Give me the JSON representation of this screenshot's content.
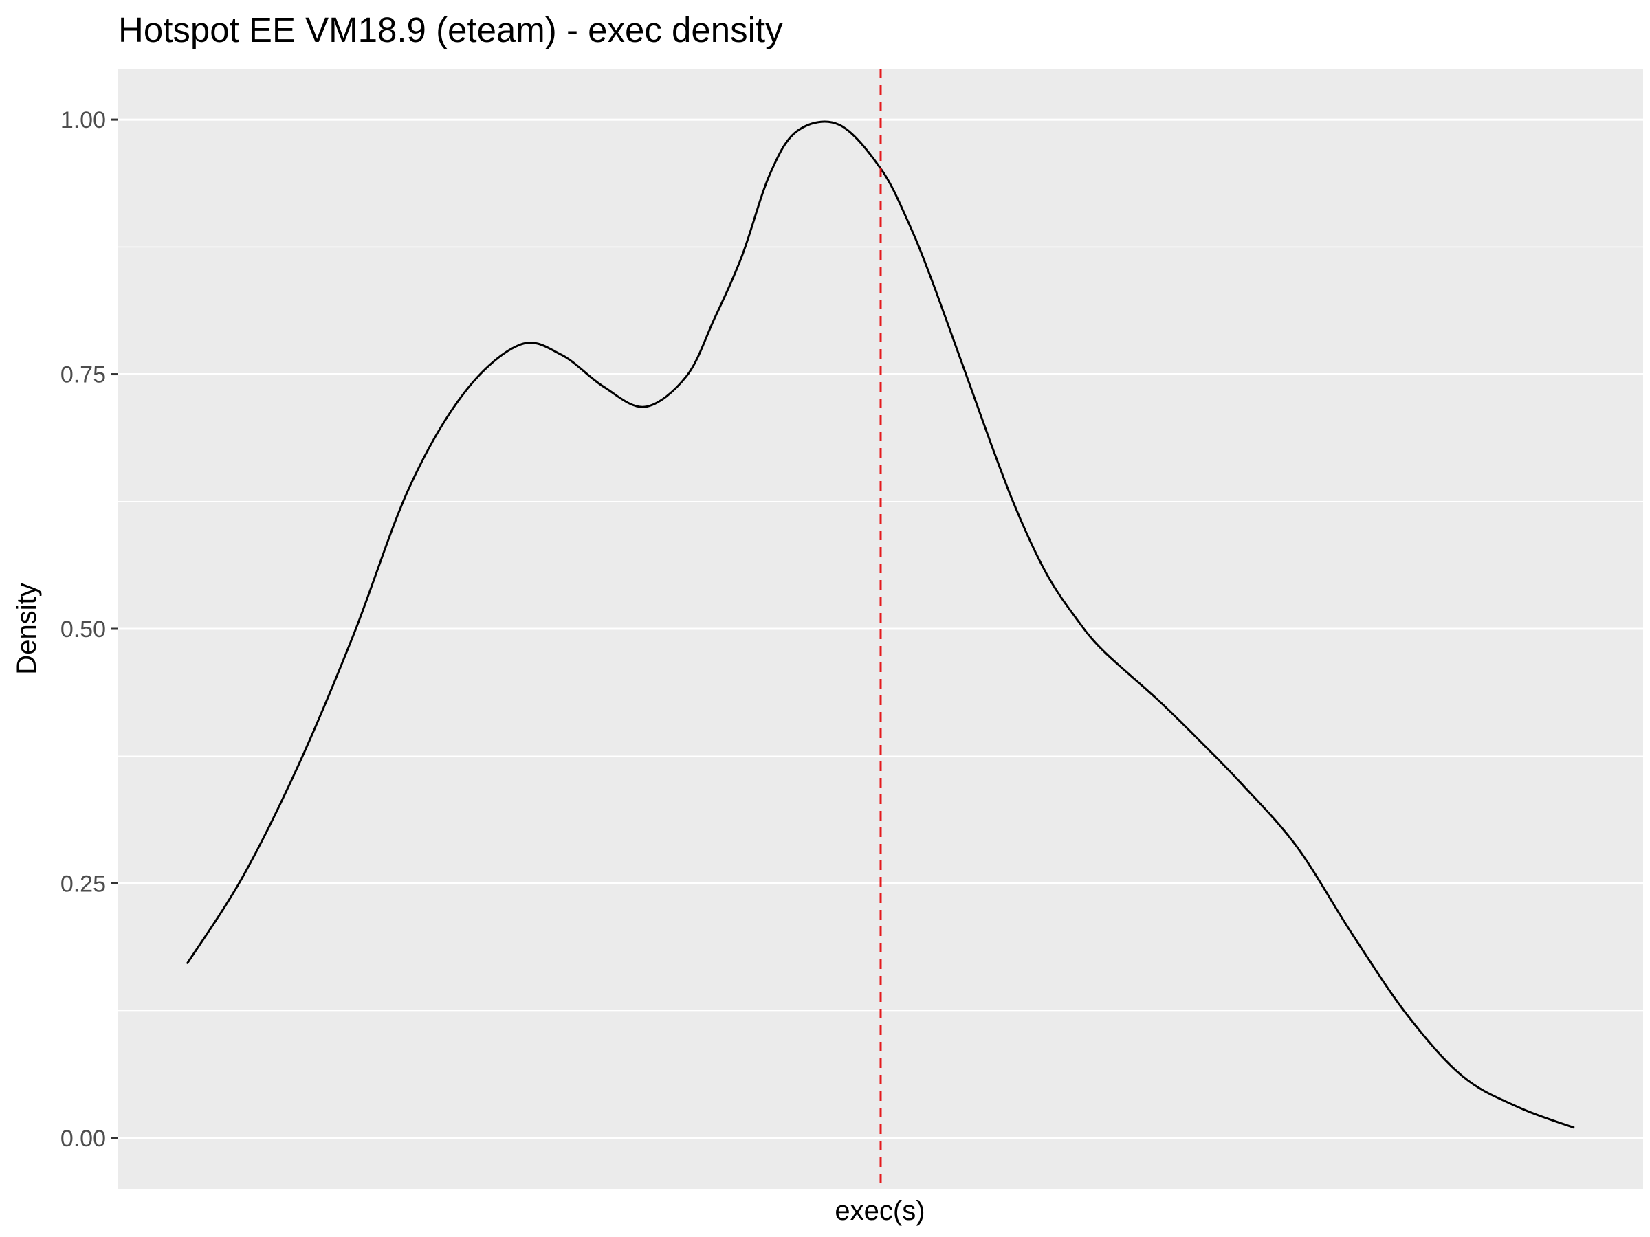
{
  "chart_data": {
    "type": "line",
    "title": "Hotspot EE VM18.9 (eteam) - exec density",
    "xlabel": "exec(s)",
    "ylabel": "Density",
    "ylim": [
      -0.05,
      1.05
    ],
    "xlim": [
      0,
      1
    ],
    "y_ticks": [
      0,
      0.25,
      0.5,
      0.75,
      1
    ],
    "y_tick_labels": [
      "0.00",
      "0.25",
      "0.50",
      "0.75",
      "1.00"
    ],
    "x_tick_labels": [],
    "grid": true,
    "series": [
      {
        "x": [
          0.0,
          0.04,
          0.08,
          0.12,
          0.16,
          0.2,
          0.24,
          0.27,
          0.3,
          0.33,
          0.36,
          0.38,
          0.4,
          0.42,
          0.44,
          0.47,
          0.5,
          0.52,
          0.54,
          0.58,
          0.6,
          0.62,
          0.64,
          0.66,
          0.7,
          0.73,
          0.76,
          0.8,
          0.84,
          0.88,
          0.92,
          0.96,
          1.0
        ],
        "y": [
          0.171,
          0.256,
          0.365,
          0.494,
          0.638,
          0.732,
          0.779,
          0.769,
          0.738,
          0.718,
          0.748,
          0.804,
          0.866,
          0.946,
          0.989,
          0.995,
          0.952,
          0.899,
          0.831,
          0.68,
          0.61,
          0.553,
          0.512,
          0.479,
          0.43,
          0.39,
          0.348,
          0.286,
          0.2,
          0.12,
          0.06,
          0.03,
          0.01
        ]
      }
    ],
    "reference_line": {
      "orientation": "vertical",
      "x": 0.5,
      "color": "#e41a1c",
      "style": "dashed"
    },
    "colors": {
      "panel": "#ebebeb",
      "grid": "#ffffff",
      "line": "#000000"
    }
  }
}
